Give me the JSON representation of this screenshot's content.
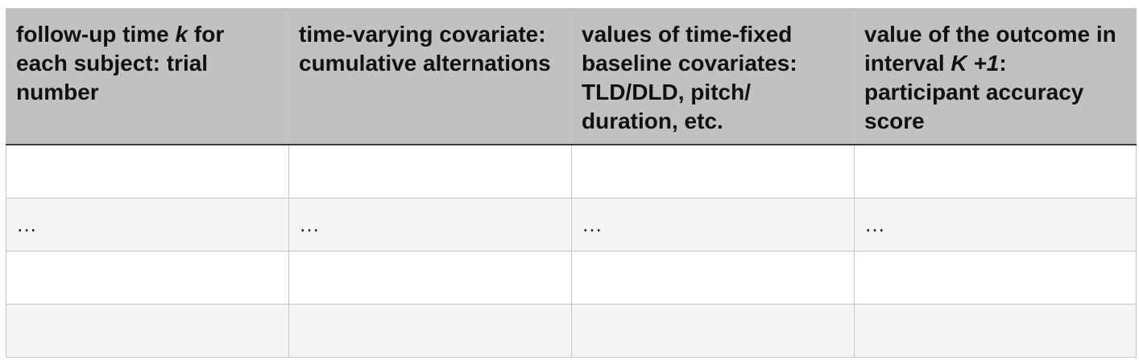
{
  "table": {
    "headers": [
      {
        "pre": "follow-up time ",
        "em": "k",
        "post": " for each subject: trial number"
      },
      {
        "pre": "time-varying covariate: cumulative alternations",
        "em": "",
        "post": ""
      },
      {
        "pre": "values of time-fixed baseline covariates: TLD/DLD, pitch/ duration, etc.",
        "em": "",
        "post": ""
      },
      {
        "pre": "value of the outcome in interval ",
        "em": "K +1",
        "post": ": participant accuracy score"
      }
    ],
    "rows": [
      [
        "",
        "",
        "",
        ""
      ],
      [
        "…",
        "…",
        "…",
        "…"
      ],
      [
        "",
        "",
        "",
        ""
      ],
      [
        "",
        "",
        "",
        ""
      ]
    ]
  }
}
